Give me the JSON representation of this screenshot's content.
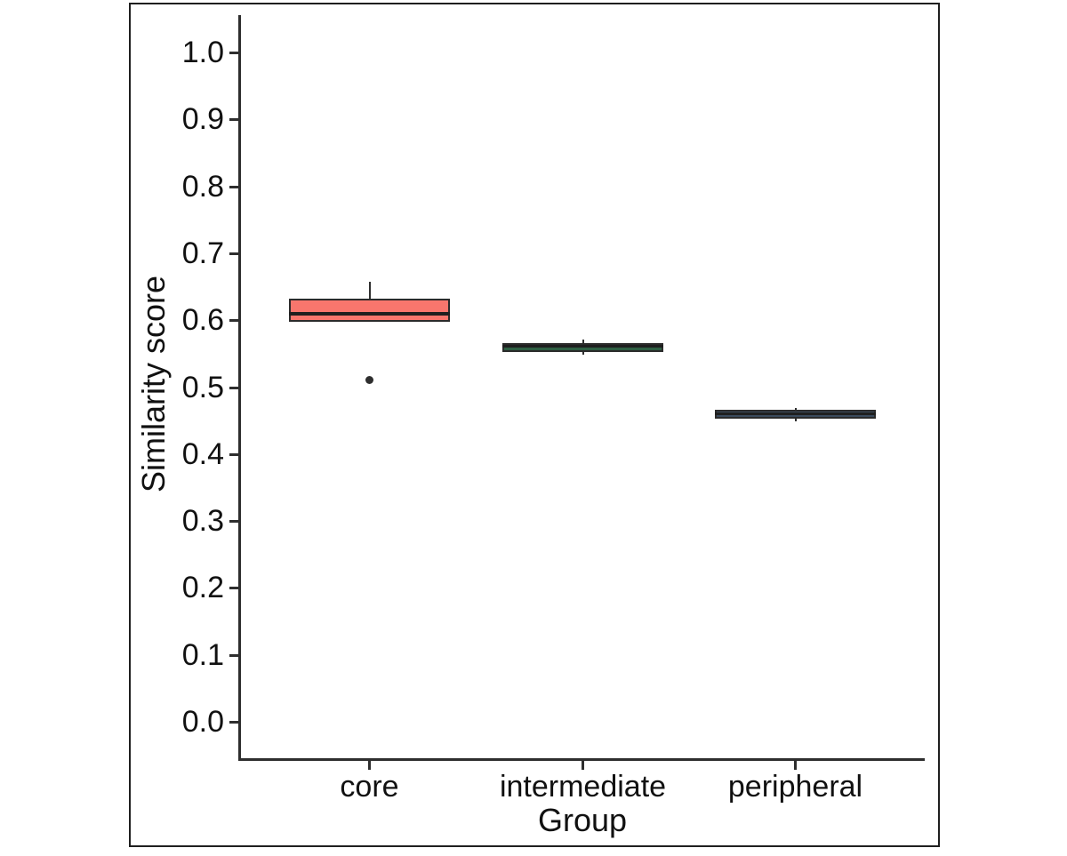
{
  "figure": {
    "background": "#ffffff",
    "border_color": "#1f1f1f",
    "axis_color": "#2e2e2e",
    "text_color": "#111111"
  },
  "chart_data": {
    "type": "boxplot",
    "title": "",
    "xlabel": "Group",
    "ylabel": "Similarity score",
    "categories": [
      "core",
      "intermediate",
      "peripheral"
    ],
    "y_tick_labels": [
      "0.0",
      "0.1",
      "0.2",
      "0.3",
      "0.4",
      "0.5",
      "0.6",
      "0.7",
      "0.8",
      "0.9",
      "1.0"
    ],
    "y_tick_values": [
      0.0,
      0.1,
      0.2,
      0.3,
      0.4,
      0.5,
      0.6,
      0.7,
      0.8,
      0.9,
      1.0
    ],
    "ylim": [
      0.0,
      1.0
    ],
    "grid": false,
    "legend": "none",
    "box_edge_color": "#2b2b2b",
    "median_color": "#1f1f1f",
    "boxes": [
      {
        "group": "core",
        "fill": "#F8766D",
        "whisker_low": 0.598,
        "q1": 0.598,
        "median": 0.61,
        "q3": 0.632,
        "whisker_high": 0.658,
        "outliers": [
          0.511
        ]
      },
      {
        "group": "intermediate",
        "fill": "#2E5F43",
        "whisker_low": 0.548,
        "q1": 0.553,
        "median": 0.56,
        "q3": 0.566,
        "whisker_high": 0.571,
        "outliers": []
      },
      {
        "group": "peripheral",
        "fill": "#3A4A5C",
        "whisker_low": 0.449,
        "q1": 0.453,
        "median": 0.459,
        "q3": 0.466,
        "whisker_high": 0.469,
        "outliers": []
      }
    ]
  }
}
